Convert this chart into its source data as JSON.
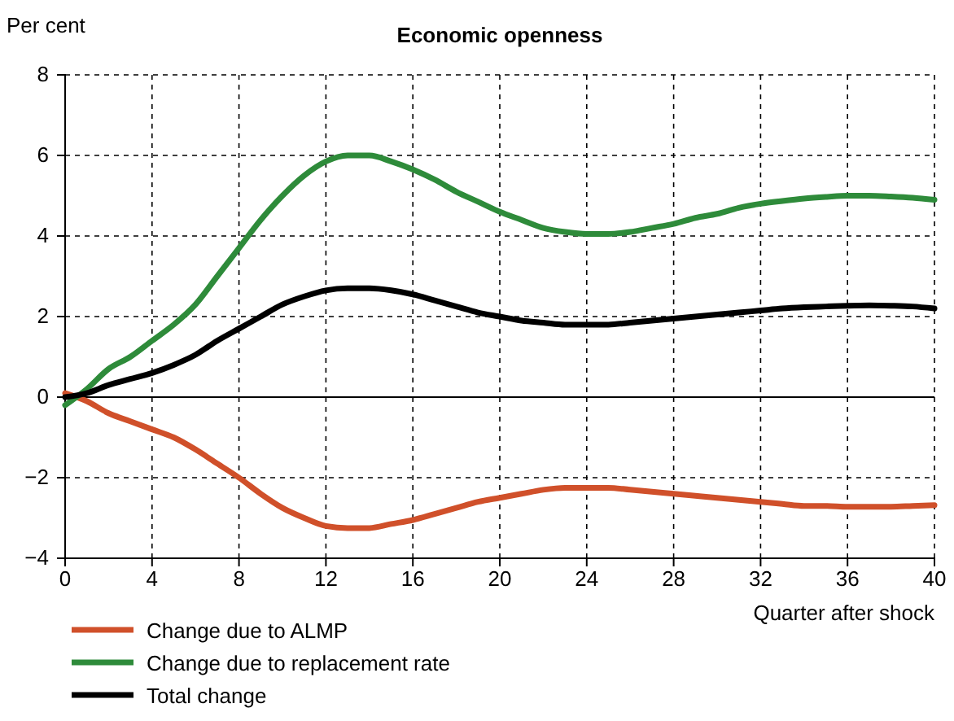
{
  "chart_data": {
    "type": "line",
    "title": "Economic openness",
    "ylabel": "Per cent",
    "xlabel": "Quarter after shock",
    "x": [
      0,
      1,
      2,
      3,
      4,
      5,
      6,
      7,
      8,
      9,
      10,
      11,
      12,
      13,
      14,
      15,
      16,
      17,
      18,
      19,
      20,
      21,
      22,
      23,
      24,
      25,
      26,
      27,
      28,
      29,
      30,
      31,
      32,
      33,
      34,
      35,
      36,
      37,
      38,
      39,
      40
    ],
    "series": [
      {
        "name": "Change due to ALMP",
        "color": "#d0502a",
        "values": [
          0.1,
          -0.1,
          -0.4,
          -0.6,
          -0.8,
          -1.0,
          -1.3,
          -1.65,
          -2.0,
          -2.4,
          -2.75,
          -3.0,
          -3.2,
          -3.25,
          -3.25,
          -3.15,
          -3.05,
          -2.9,
          -2.75,
          -2.6,
          -2.5,
          -2.4,
          -2.3,
          -2.25,
          -2.25,
          -2.25,
          -2.3,
          -2.35,
          -2.4,
          -2.45,
          -2.5,
          -2.55,
          -2.6,
          -2.65,
          -2.7,
          -2.7,
          -2.72,
          -2.72,
          -2.72,
          -2.7,
          -2.68
        ]
      },
      {
        "name": "Change due to replacement rate",
        "color": "#2e8b3a",
        "values": [
          -0.2,
          0.2,
          0.7,
          1.0,
          1.4,
          1.8,
          2.3,
          3.0,
          3.7,
          4.4,
          5.0,
          5.5,
          5.85,
          6.0,
          6.0,
          5.85,
          5.65,
          5.4,
          5.1,
          4.85,
          4.6,
          4.4,
          4.2,
          4.1,
          4.05,
          4.05,
          4.1,
          4.2,
          4.3,
          4.45,
          4.55,
          4.7,
          4.8,
          4.87,
          4.93,
          4.97,
          5.0,
          5.0,
          4.98,
          4.95,
          4.9
        ]
      },
      {
        "name": "Total change",
        "color": "#000000",
        "values": [
          0.0,
          0.1,
          0.3,
          0.45,
          0.6,
          0.8,
          1.05,
          1.4,
          1.7,
          2.0,
          2.3,
          2.5,
          2.65,
          2.7,
          2.7,
          2.65,
          2.55,
          2.4,
          2.25,
          2.1,
          2.0,
          1.9,
          1.85,
          1.8,
          1.8,
          1.8,
          1.85,
          1.9,
          1.95,
          2.0,
          2.05,
          2.1,
          2.15,
          2.2,
          2.23,
          2.25,
          2.27,
          2.28,
          2.27,
          2.25,
          2.2
        ]
      }
    ],
    "xlim": [
      0,
      40
    ],
    "xticks": [
      0,
      4,
      8,
      12,
      16,
      20,
      24,
      28,
      32,
      36,
      40
    ],
    "ylim": [
      -4,
      8
    ],
    "yticks": [
      {
        "value": -4,
        "label": "−4"
      },
      {
        "value": -2,
        "label": "−2"
      },
      0,
      2,
      4,
      6,
      8
    ],
    "ref_lines": [
      {
        "axis": "y",
        "value": 0,
        "color": "#000000"
      }
    ],
    "grid": true,
    "legend": "bottom left",
    "marker": "none",
    "line_style": "solid"
  }
}
